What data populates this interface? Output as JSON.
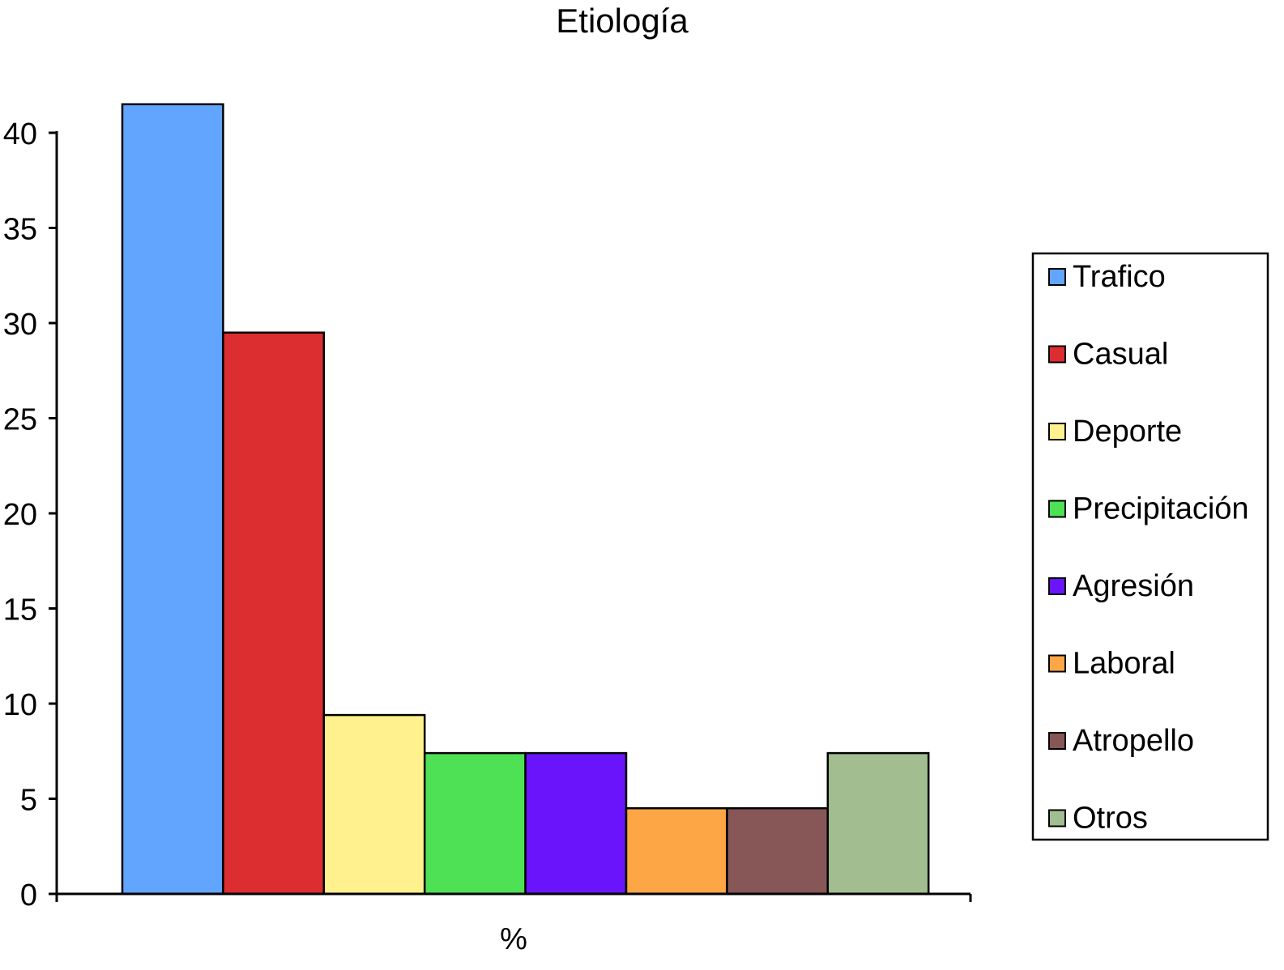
{
  "chart_data": {
    "type": "bar",
    "title": "Etiología",
    "xlabel": "%",
    "ylabel": "",
    "categories": [
      "%"
    ],
    "ylim": [
      0,
      40
    ],
    "yticks": [
      0,
      5,
      10,
      15,
      20,
      25,
      30,
      35,
      40
    ],
    "grid": false,
    "legend_position": "right",
    "series": [
      {
        "name": "Trafico",
        "values": [
          41.5
        ],
        "color": "#62a5ff"
      },
      {
        "name": "Casual",
        "values": [
          29.5
        ],
        "color": "#dc2d31"
      },
      {
        "name": "Deporte",
        "values": [
          9.4
        ],
        "color": "#fff28e"
      },
      {
        "name": "Precipitación",
        "values": [
          7.4
        ],
        "color": "#4ee055"
      },
      {
        "name": "Agresión",
        "values": [
          7.4
        ],
        "color": "#6a14fb"
      },
      {
        "name": "Laboral",
        "values": [
          4.5
        ],
        "color": "#fda645"
      },
      {
        "name": "Atropello",
        "values": [
          4.5
        ],
        "color": "#875656"
      },
      {
        "name": "Otros",
        "values": [
          7.4
        ],
        "color": "#a2bd8f"
      }
    ]
  }
}
